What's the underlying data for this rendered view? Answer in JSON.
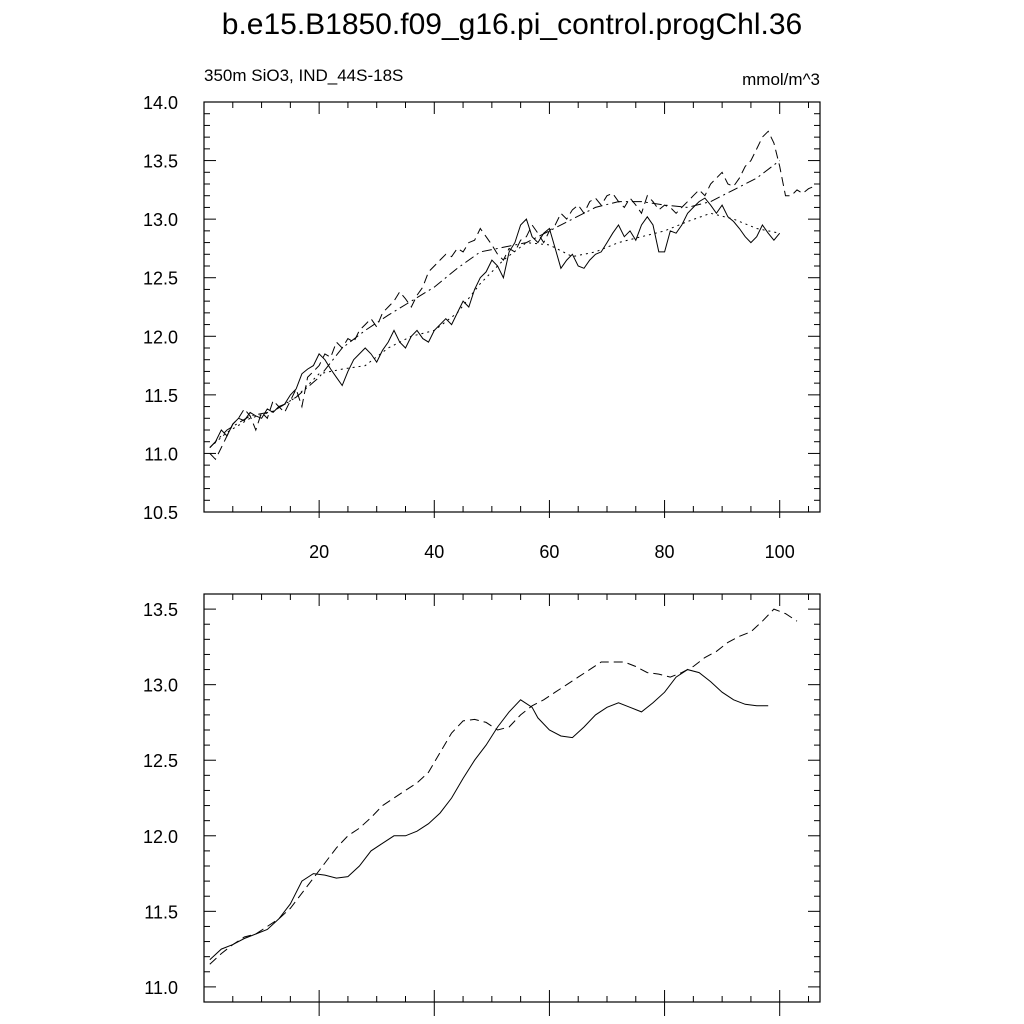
{
  "title": "b.e15.B1850.f09_g16.pi_control.progChl.36",
  "subtitle_left": "350m SiO3, IND_44S-18S",
  "subtitle_right": "mmol/m^3",
  "chart_data": [
    {
      "type": "line",
      "name": "top-panel-annual",
      "xlim": [
        0,
        107
      ],
      "ylim": [
        10.5,
        14.0
      ],
      "x_ticks": [
        20,
        40,
        60,
        80,
        100
      ],
      "y_ticks": [
        10.5,
        11.0,
        11.5,
        12.0,
        12.5,
        13.0,
        13.5,
        14.0
      ],
      "y_tick_labels": [
        "10.5",
        "11.0",
        "11.5",
        "12.0",
        "12.5",
        "13.0",
        "13.5",
        "14.0"
      ],
      "series": [
        {
          "style": "solid",
          "x": [
            1,
            2,
            3,
            4,
            5,
            6,
            7,
            8,
            9,
            10,
            11,
            12,
            13,
            14,
            15,
            16,
            17,
            18,
            19,
            20,
            21,
            22,
            23,
            24,
            25,
            26,
            27,
            28,
            29,
            30,
            31,
            32,
            33,
            34,
            35,
            36,
            37,
            38,
            39,
            40,
            41,
            42,
            43,
            44,
            45,
            46,
            47,
            48,
            49,
            50,
            51,
            52,
            53,
            54,
            55,
            56,
            57,
            58,
            59,
            60,
            61,
            62,
            63,
            64,
            65,
            66,
            67,
            68,
            69,
            70,
            71,
            72,
            73,
            74,
            75,
            76,
            77,
            78,
            79,
            80,
            81,
            82,
            83,
            84,
            85,
            86,
            87,
            88,
            89,
            90,
            91,
            92,
            93,
            94,
            95,
            96,
            97,
            98,
            99,
            100
          ],
          "y": [
            11.05,
            11.1,
            11.2,
            11.15,
            11.25,
            11.3,
            11.28,
            11.35,
            11.32,
            11.3,
            11.38,
            11.35,
            11.4,
            11.42,
            11.5,
            11.55,
            11.68,
            11.72,
            11.75,
            11.85,
            11.8,
            11.72,
            11.65,
            11.58,
            11.7,
            11.8,
            11.85,
            11.9,
            11.85,
            11.78,
            11.88,
            11.95,
            12.05,
            11.95,
            11.9,
            12.0,
            12.05,
            11.98,
            11.95,
            12.05,
            12.1,
            12.15,
            12.1,
            12.2,
            12.3,
            12.25,
            12.4,
            12.5,
            12.55,
            12.65,
            12.6,
            12.5,
            12.72,
            12.8,
            12.95,
            13.0,
            12.85,
            12.8,
            12.88,
            12.92,
            12.75,
            12.58,
            12.65,
            12.7,
            12.6,
            12.58,
            12.65,
            12.7,
            12.72,
            12.8,
            12.88,
            12.95,
            12.85,
            12.9,
            12.82,
            12.95,
            13.02,
            12.95,
            12.72,
            12.72,
            12.9,
            12.88,
            12.95,
            13.05,
            13.1,
            13.15,
            13.18,
            13.12,
            13.05,
            13.12,
            13.02,
            12.98,
            12.92,
            12.85,
            12.8,
            12.85,
            12.95,
            12.88,
            12.82,
            12.88
          ]
        },
        {
          "style": "dashed",
          "x": [
            1,
            2,
            3,
            4,
            5,
            6,
            7,
            8,
            9,
            10,
            11,
            12,
            13,
            14,
            15,
            16,
            17,
            18,
            19,
            20,
            21,
            22,
            23,
            24,
            25,
            26,
            27,
            28,
            29,
            30,
            31,
            32,
            33,
            34,
            35,
            36,
            37,
            38,
            39,
            40,
            41,
            42,
            43,
            44,
            45,
            46,
            47,
            48,
            49,
            50,
            51,
            52,
            53,
            54,
            55,
            56,
            57,
            58,
            59,
            60,
            61,
            62,
            63,
            64,
            65,
            66,
            67,
            68,
            69,
            70,
            71,
            72,
            73,
            74,
            75,
            76,
            77,
            78,
            79,
            80,
            81,
            82,
            83,
            84,
            85,
            86,
            87,
            88,
            89,
            90,
            91,
            92,
            93,
            94,
            95,
            96,
            97,
            98,
            99,
            100,
            101,
            102,
            103,
            104,
            105,
            106
          ],
          "y": [
            11.0,
            10.95,
            11.05,
            11.15,
            11.25,
            11.3,
            11.38,
            11.32,
            11.2,
            11.35,
            11.3,
            11.45,
            11.4,
            11.35,
            11.45,
            11.55,
            11.4,
            11.65,
            11.7,
            11.75,
            11.85,
            11.82,
            11.95,
            11.9,
            11.98,
            11.95,
            12.05,
            12.1,
            12.15,
            12.08,
            12.2,
            12.25,
            12.3,
            12.38,
            12.32,
            12.25,
            12.35,
            12.42,
            12.55,
            12.6,
            12.65,
            12.7,
            12.68,
            12.75,
            12.72,
            12.8,
            12.82,
            12.92,
            12.85,
            12.78,
            12.7,
            12.65,
            12.75,
            12.72,
            12.82,
            12.85,
            12.95,
            12.88,
            12.8,
            12.9,
            12.95,
            13.05,
            13.0,
            13.08,
            13.12,
            13.05,
            13.15,
            13.18,
            13.12,
            13.2,
            13.22,
            13.15,
            13.1,
            13.18,
            13.12,
            13.05,
            13.2,
            13.15,
            13.08,
            13.12,
            13.1,
            13.05,
            13.1,
            13.15,
            13.2,
            13.25,
            13.2,
            13.3,
            13.35,
            13.4,
            13.3,
            13.28,
            13.35,
            13.45,
            13.5,
            13.6,
            13.7,
            13.75,
            13.65,
            13.45,
            13.2,
            13.2,
            13.25,
            13.22,
            13.26,
            13.28
          ]
        },
        {
          "style": "dash-dot",
          "x": [
            1,
            4,
            8,
            12,
            16,
            20,
            24,
            28,
            32,
            36,
            40,
            44,
            48,
            52,
            56,
            60,
            64,
            68,
            72,
            76,
            80,
            84,
            88,
            92,
            96,
            100
          ],
          "y": [
            11.05,
            11.2,
            11.32,
            11.36,
            11.48,
            11.65,
            11.9,
            12.05,
            12.18,
            12.3,
            12.42,
            12.58,
            12.72,
            12.76,
            12.8,
            12.9,
            13.0,
            13.1,
            13.15,
            13.15,
            13.12,
            13.1,
            13.15,
            13.25,
            13.35,
            13.5
          ]
        },
        {
          "style": "dotted",
          "x": [
            1,
            4,
            8,
            12,
            16,
            20,
            24,
            28,
            32,
            36,
            40,
            44,
            48,
            52,
            56,
            60,
            64,
            68,
            72,
            76,
            80,
            84,
            88,
            92,
            96,
            100
          ],
          "y": [
            11.05,
            11.18,
            11.3,
            11.36,
            11.48,
            11.68,
            11.72,
            11.75,
            11.9,
            12.0,
            12.05,
            12.2,
            12.45,
            12.65,
            12.8,
            12.78,
            12.68,
            12.72,
            12.8,
            12.85,
            12.9,
            12.98,
            13.05,
            13.0,
            12.92,
            12.88
          ]
        }
      ]
    },
    {
      "type": "line",
      "name": "bottom-panel-smoothed",
      "xlim": [
        0,
        107
      ],
      "ylim": [
        10.9,
        13.6
      ],
      "x_ticks": [
        20,
        40,
        60,
        80,
        100
      ],
      "y_ticks": [
        11.0,
        11.5,
        12.0,
        12.5,
        13.0,
        13.5
      ],
      "y_tick_labels": [
        "11.0",
        "11.5",
        "12.0",
        "12.5",
        "13.0",
        "13.5"
      ],
      "series": [
        {
          "style": "solid",
          "x": [
            1,
            3,
            5,
            7,
            9,
            11,
            13,
            15,
            17,
            19,
            21,
            23,
            25,
            27,
            29,
            31,
            33,
            35,
            37,
            39,
            41,
            43,
            45,
            47,
            49,
            51,
            53,
            55,
            57,
            58,
            60,
            62,
            64,
            66,
            68,
            70,
            72,
            74,
            76,
            78,
            80,
            82,
            84,
            86,
            88,
            90,
            92,
            94,
            96,
            98
          ],
          "y": [
            11.18,
            11.25,
            11.28,
            11.32,
            11.35,
            11.38,
            11.45,
            11.55,
            11.7,
            11.75,
            11.74,
            11.72,
            11.73,
            11.8,
            11.9,
            11.95,
            12.0,
            12.0,
            12.03,
            12.08,
            12.15,
            12.25,
            12.38,
            12.5,
            12.6,
            12.72,
            12.82,
            12.9,
            12.85,
            12.78,
            12.7,
            12.66,
            12.65,
            12.72,
            12.8,
            12.85,
            12.88,
            12.85,
            12.82,
            12.88,
            12.95,
            13.05,
            13.1,
            13.08,
            13.02,
            12.95,
            12.9,
            12.87,
            12.86,
            12.86
          ]
        },
        {
          "style": "dashed",
          "x": [
            1,
            3,
            5,
            7,
            9,
            11,
            13,
            15,
            17,
            19,
            21,
            23,
            25,
            27,
            29,
            31,
            33,
            35,
            37,
            39,
            41,
            43,
            45,
            47,
            49,
            51,
            53,
            55,
            57,
            59,
            61,
            63,
            65,
            67,
            69,
            71,
            73,
            75,
            77,
            79,
            81,
            83,
            85,
            87,
            89,
            91,
            93,
            95,
            97,
            99,
            101,
            103
          ],
          "y": [
            11.15,
            11.22,
            11.28,
            11.33,
            11.35,
            11.4,
            11.45,
            11.52,
            11.62,
            11.72,
            11.82,
            11.92,
            12.0,
            12.05,
            12.12,
            12.2,
            12.25,
            12.3,
            12.35,
            12.42,
            12.55,
            12.68,
            12.76,
            12.77,
            12.75,
            12.7,
            12.72,
            12.8,
            12.86,
            12.9,
            12.95,
            13.0,
            13.05,
            13.1,
            13.15,
            13.15,
            13.15,
            13.12,
            13.08,
            13.07,
            13.05,
            13.08,
            13.12,
            13.18,
            13.22,
            13.28,
            13.32,
            13.35,
            13.42,
            13.5,
            13.47,
            13.42
          ]
        }
      ]
    }
  ]
}
